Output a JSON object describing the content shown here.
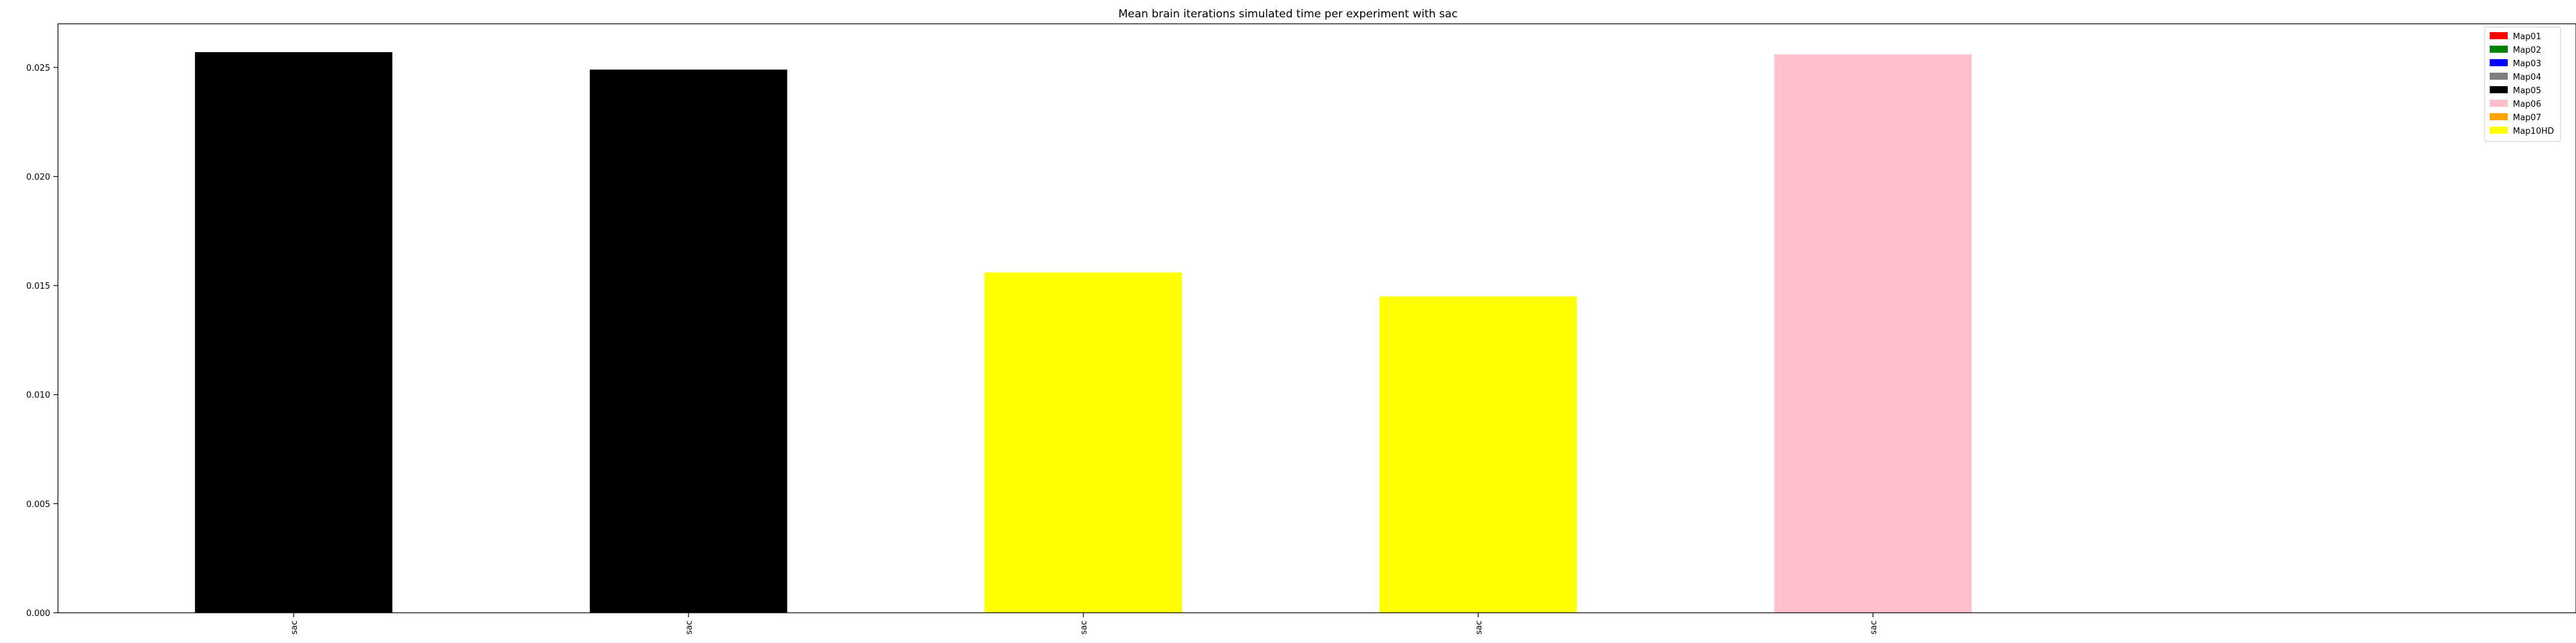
{
  "chart_data": {
    "type": "bar",
    "title": "Mean brain iterations simulated time per experiment with sac",
    "xlabel": "",
    "ylabel": "",
    "categories": [
      "sac",
      "sac",
      "sac",
      "sac",
      "sac"
    ],
    "values": [
      0.0257,
      0.0249,
      0.0156,
      0.0145,
      0.0256
    ],
    "bar_colors": [
      "#000000",
      "#000000",
      "#ffff00",
      "#ffff00",
      "#ffc0cb"
    ],
    "ylim": [
      0,
      0.027
    ],
    "yticks": [
      0.0,
      0.005,
      0.01,
      0.015,
      0.02,
      0.025
    ],
    "ytick_labels": [
      "0.000",
      "0.005",
      "0.010",
      "0.015",
      "0.020",
      "0.025"
    ],
    "grid": false,
    "legend_position": "top-right",
    "legend": [
      {
        "label": "Map01",
        "color": "#ff0000"
      },
      {
        "label": "Map02",
        "color": "#008000"
      },
      {
        "label": "Map03",
        "color": "#0000ff"
      },
      {
        "label": "Map04",
        "color": "#808080"
      },
      {
        "label": "Map05",
        "color": "#000000"
      },
      {
        "label": "Map06",
        "color": "#ffc0cb"
      },
      {
        "label": "Map07",
        "color": "#ffa500"
      },
      {
        "label": "Map10HD",
        "color": "#ffff00"
      }
    ]
  }
}
